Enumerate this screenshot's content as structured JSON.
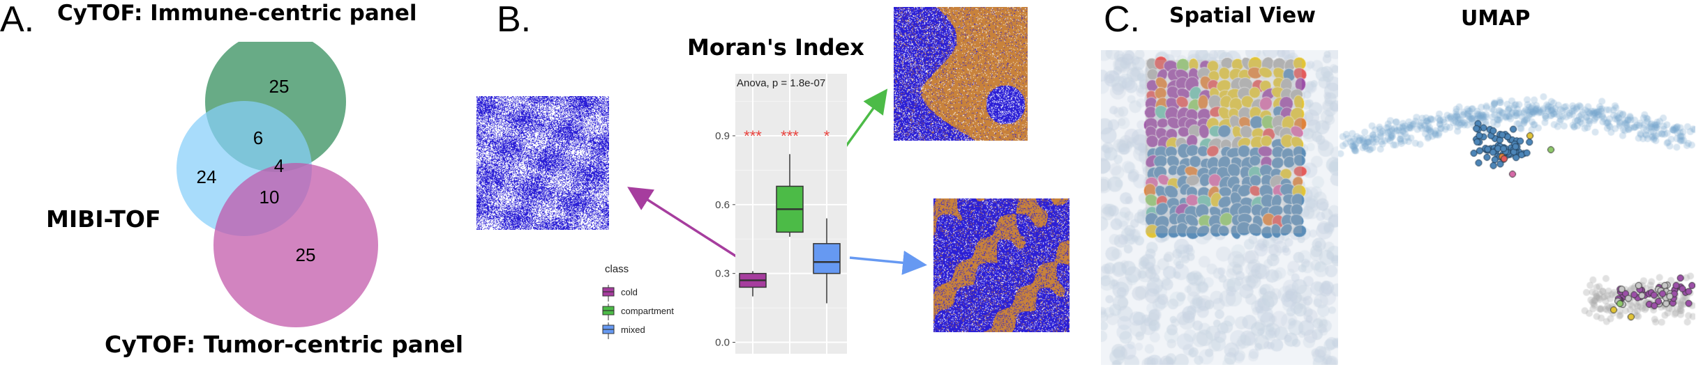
{
  "panel_a": {
    "letter": "A.",
    "title_immune": "CyTOF: Immune-centric panel",
    "title_mibi": "MIBI-TOF",
    "title_tumor": "CyTOF: Tumor-centric panel",
    "venn_counts": {
      "immune_only": "25",
      "immune_mibi": "6",
      "mibi_only": "24",
      "all_three": "4",
      "mibi_tumor": "10",
      "tumor_only": "25"
    },
    "colors": {
      "immune": "#2e8b57",
      "mibi": "#87cefa",
      "tumor": "#c154a8"
    }
  },
  "panel_b": {
    "letter": "B.",
    "title": "Moran's Index",
    "anova_label": "Anova, p = 1.8e-07",
    "significance": [
      "***",
      "***",
      "*"
    ],
    "legend_title": "class",
    "legend": [
      {
        "label": "cold",
        "color": "#a63d9e"
      },
      {
        "label": "compartment",
        "color": "#4cbb47"
      },
      {
        "label": "mixed",
        "color": "#6699f2"
      }
    ],
    "y_ticks": [
      "0.0",
      "0.3",
      "0.6",
      "0.9"
    ],
    "ylim": [
      -0.05,
      1.17
    ],
    "tissue_colors": {
      "tumor": "#2b1fd6",
      "immune": "#c8823b",
      "background": "#ffffff"
    }
  },
  "chart_data": {
    "type": "box",
    "categories": [
      "cold",
      "compartment",
      "mixed"
    ],
    "series": [
      {
        "category": "cold",
        "whisker_low": 0.2,
        "q1": 0.24,
        "median": 0.27,
        "q3": 0.3,
        "whisker_high": 0.31
      },
      {
        "category": "compartment",
        "whisker_low": 0.46,
        "q1": 0.48,
        "median": 0.58,
        "q3": 0.68,
        "whisker_high": 0.82
      },
      {
        "category": "mixed",
        "whisker_low": 0.17,
        "q1": 0.3,
        "median": 0.35,
        "q3": 0.43,
        "whisker_high": 0.54
      }
    ],
    "title": "Anova, p = 1.8e-07",
    "ylim": [
      -0.05,
      1.17
    ],
    "yticks": [
      0.0,
      0.3,
      0.6,
      0.9
    ],
    "grid": true,
    "legend_position": "left"
  },
  "panel_c": {
    "letter": "C.",
    "title_spatial": "Spatial View",
    "title_umap": "UMAP",
    "cell_colors": [
      "#5b8db8",
      "#9c4fa8",
      "#e2c437",
      "#e0823a",
      "#8fc96b",
      "#d66aa8",
      "#6fc2b0",
      "#b0b0b0",
      "#e45b5b"
    ]
  }
}
